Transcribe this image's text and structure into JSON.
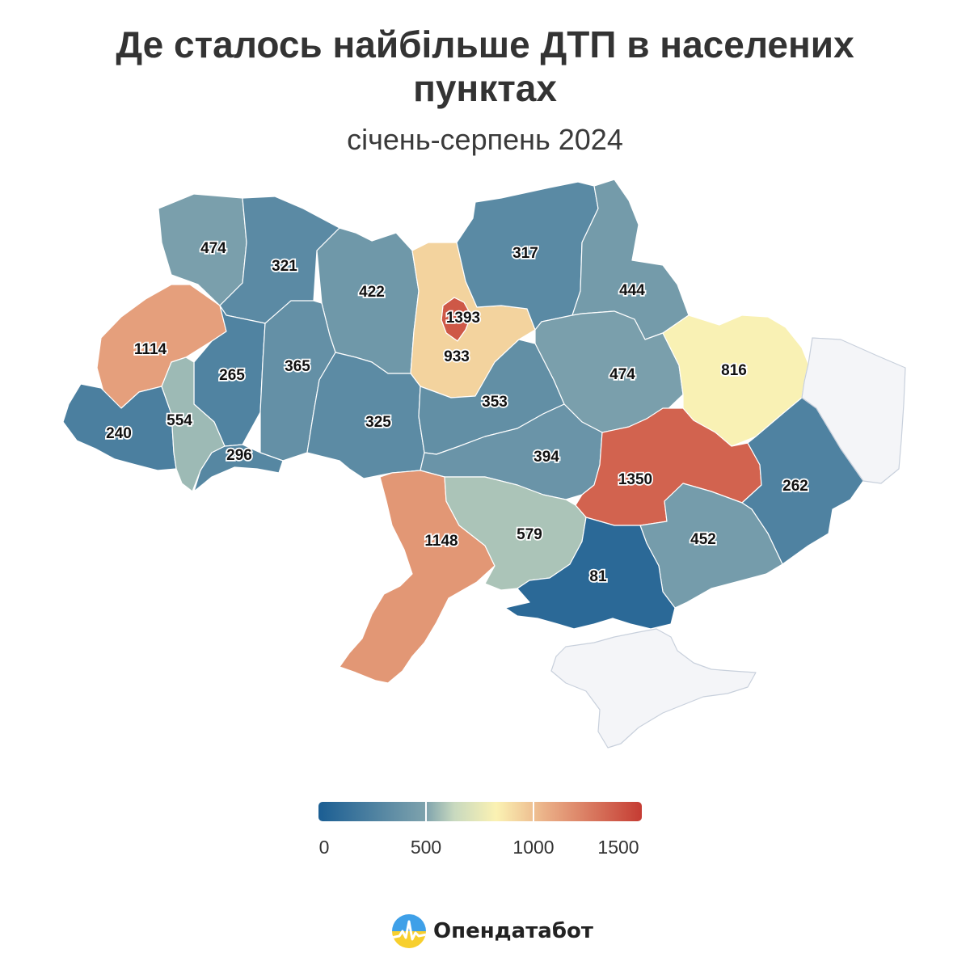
{
  "title_line1": "Де сталось найбільше ДТП в населених",
  "title_line2": "пунктах",
  "subtitle": "січень-серпень 2024",
  "brand": {
    "name": "Опендатабот",
    "icon": "opendatabot-logo-icon"
  },
  "legend": {
    "min": 0,
    "max": 1500,
    "ticks": [
      "0",
      "500",
      "1000",
      "1500"
    ],
    "colors": [
      "#1b5e93",
      "#7fa3ad",
      "#c8d9bf",
      "#fbf2b3",
      "#e8a882",
      "#c53c33"
    ]
  },
  "chart_data": {
    "type": "choropleth",
    "regions": [
      {
        "value": 474,
        "label": "474"
      },
      {
        "value": 321,
        "label": "321"
      },
      {
        "value": 422,
        "label": "422"
      },
      {
        "value": 1393,
        "label": "1393"
      },
      {
        "value": 933,
        "label": "933"
      },
      {
        "value": 317,
        "label": "317"
      },
      {
        "value": 444,
        "label": "444"
      },
      {
        "value": 1114,
        "label": "1114"
      },
      {
        "value": 265,
        "label": "265"
      },
      {
        "value": 365,
        "label": "365"
      },
      {
        "value": 474,
        "label": "474"
      },
      {
        "value": 816,
        "label": "816"
      },
      {
        "value": 240,
        "label": "240"
      },
      {
        "value": 554,
        "label": "554"
      },
      {
        "value": 296,
        "label": "296"
      },
      {
        "value": 325,
        "label": "325"
      },
      {
        "value": 353,
        "label": "353"
      },
      {
        "value": 394,
        "label": "394"
      },
      {
        "value": 1350,
        "label": "1350"
      },
      {
        "value": 262,
        "label": "262"
      },
      {
        "value": 1148,
        "label": "1148"
      },
      {
        "value": 579,
        "label": "579"
      },
      {
        "value": 452,
        "label": "452"
      },
      {
        "value": 81,
        "label": "81"
      },
      {
        "value": null,
        "label": ""
      },
      {
        "value": null,
        "label": ""
      }
    ]
  }
}
